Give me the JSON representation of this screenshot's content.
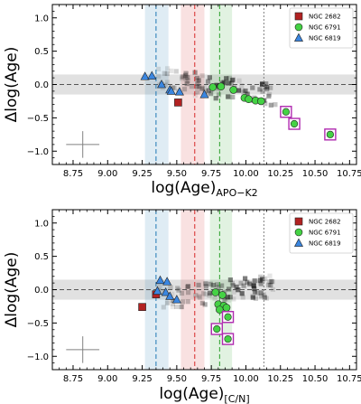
{
  "chart_data": [
    {
      "type": "scatter",
      "title": "",
      "xlabel": "log(Age)",
      "xlabel_subscript": "APO−K2",
      "ylabel": "Δlog(Age)",
      "xlim": [
        8.6,
        10.8
      ],
      "ylim": [
        -1.2,
        1.2
      ],
      "xticks": [
        8.75,
        9.0,
        9.25,
        9.5,
        9.75,
        10.0,
        10.25,
        10.5,
        10.75
      ],
      "xtick_labels": [
        "8.75",
        "9.00",
        "9.25",
        "9.50",
        "9.75",
        "10.00",
        "10.25",
        "10.50",
        "10.75"
      ],
      "yticks": [
        -1.0,
        -0.5,
        0.0,
        0.5,
        1.0
      ],
      "ytick_labels": [
        "−1.0",
        "−0.5",
        "0.0",
        "0.5",
        "1.0"
      ],
      "zero_band": [
        -0.15,
        0.15
      ],
      "reference_lines": [
        {
          "x": 9.35,
          "band": [
            9.27,
            9.44
          ],
          "color": "#1f77b4"
        },
        {
          "x": 9.63,
          "band": [
            9.53,
            9.7
          ],
          "color": "#d62728"
        },
        {
          "x": 9.81,
          "band": [
            9.74,
            9.9
          ],
          "color": "#2ca02c"
        },
        {
          "x": 10.13,
          "color": "#808080"
        }
      ],
      "error_bar": {
        "x": 8.82,
        "y": -0.9,
        "xerr": 0.12,
        "yerr": 0.2
      },
      "legend_position": "top-right",
      "series": [
        {
          "name": "NGC 2682",
          "marker": "square",
          "color": "#b22222",
          "points": [
            [
              9.51,
              -0.27
            ]
          ]
        },
        {
          "name": "NGC 6791",
          "marker": "circle",
          "color": "#44d244",
          "points": [
            [
              9.76,
              -0.04
            ],
            [
              9.82,
              -0.03
            ],
            [
              9.91,
              -0.08
            ],
            [
              9.99,
              -0.2
            ],
            [
              10.02,
              -0.22
            ],
            [
              10.07,
              -0.24
            ],
            [
              10.11,
              -0.25
            ]
          ]
        },
        {
          "name": "NGC 6819",
          "marker": "triangle",
          "color": "#3a86e0",
          "points": [
            [
              9.27,
              0.12
            ],
            [
              9.32,
              0.13
            ],
            [
              9.39,
              0.0
            ],
            [
              9.45,
              -0.08
            ],
            [
              9.46,
              -0.1
            ],
            [
              9.52,
              -0.11
            ],
            [
              9.7,
              -0.15
            ]
          ]
        },
        {
          "name": "",
          "marker": "circle-in-square",
          "color": "#44d244",
          "points": [
            [
              10.29,
              -0.41
            ],
            [
              10.35,
              -0.59
            ],
            [
              10.61,
              -0.75
            ]
          ]
        }
      ]
    },
    {
      "type": "scatter",
      "title": "",
      "xlabel": "log(Age)",
      "xlabel_subscript": "[C/N]",
      "ylabel": "Δlog(Age)",
      "xlim": [
        8.6,
        10.8
      ],
      "ylim": [
        -1.2,
        1.2
      ],
      "xticks": [
        8.75,
        9.0,
        9.25,
        9.5,
        9.75,
        10.0,
        10.25,
        10.5,
        10.75
      ],
      "xtick_labels": [
        "8.75",
        "9.00",
        "9.25",
        "9.50",
        "9.75",
        "10.00",
        "10.25",
        "10.50",
        "10.75"
      ],
      "yticks": [
        -1.0,
        -0.5,
        0.0,
        0.5,
        1.0
      ],
      "ytick_labels": [
        "−1.0",
        "−0.5",
        "0.0",
        "0.5",
        "1.0"
      ],
      "zero_band": [
        -0.15,
        0.15
      ],
      "reference_lines": [
        {
          "x": 9.35,
          "band": [
            9.27,
            9.44
          ],
          "color": "#1f77b4"
        },
        {
          "x": 9.63,
          "band": [
            9.53,
            9.7
          ],
          "color": "#d62728"
        },
        {
          "x": 9.81,
          "band": [
            9.74,
            9.9
          ],
          "color": "#2ca02c"
        },
        {
          "x": 10.13,
          "color": "#808080"
        }
      ],
      "error_bar": {
        "x": 8.82,
        "y": -0.9,
        "xerr": 0.12,
        "yerr": 0.2
      },
      "legend_position": "top-right",
      "series": [
        {
          "name": "NGC 2682",
          "marker": "square",
          "color": "#b22222",
          "points": [
            [
              9.25,
              -0.26
            ],
            [
              9.35,
              -0.07
            ]
          ]
        },
        {
          "name": "NGC 6791",
          "marker": "circle",
          "color": "#44d244",
          "points": [
            [
              9.78,
              -0.04
            ],
            [
              9.83,
              -0.08
            ],
            [
              9.8,
              -0.22
            ],
            [
              9.84,
              -0.24
            ],
            [
              9.86,
              -0.27
            ],
            [
              9.81,
              -0.3
            ]
          ]
        },
        {
          "name": "NGC 6819",
          "marker": "triangle",
          "color": "#3a86e0",
          "points": [
            [
              9.38,
              0.14
            ],
            [
              9.43,
              0.12
            ],
            [
              9.36,
              -0.02
            ],
            [
              9.42,
              -0.04
            ],
            [
              9.45,
              -0.1
            ],
            [
              9.5,
              -0.15
            ]
          ]
        },
        {
          "name": "",
          "marker": "circle-in-square",
          "color": "#44d244",
          "points": [
            [
              9.79,
              -0.59
            ],
            [
              9.87,
              -0.41
            ],
            [
              9.87,
              -0.74
            ]
          ]
        }
      ]
    }
  ]
}
